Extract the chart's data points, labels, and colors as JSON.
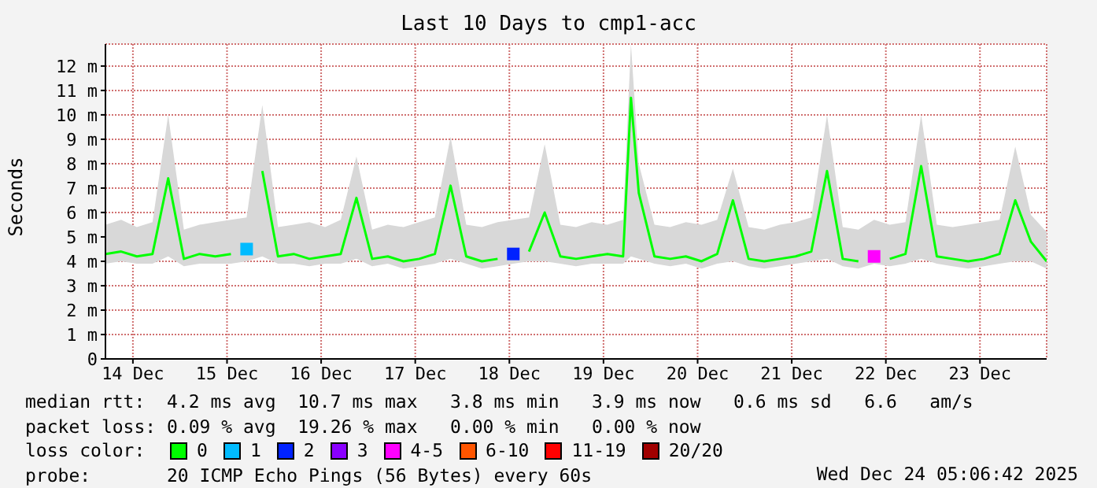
{
  "chart_data": {
    "type": "line",
    "title": "Last 10 Days to cmp1-acc",
    "ylabel": "Seconds",
    "x": [
      "2025-12-14T05:00",
      "2025-12-14T09:00",
      "2025-12-14T13:00",
      "2025-12-14T17:00",
      "2025-12-14T21:00",
      "2025-12-15T01:00",
      "2025-12-15T05:00",
      "2025-12-15T09:00",
      "2025-12-15T13:00",
      "2025-12-15T17:00",
      "2025-12-15T21:00",
      "2025-12-16T01:00",
      "2025-12-16T05:00",
      "2025-12-16T09:00",
      "2025-12-16T13:00",
      "2025-12-16T17:00",
      "2025-12-16T21:00",
      "2025-12-17T01:00",
      "2025-12-17T05:00",
      "2025-12-17T09:00",
      "2025-12-17T13:00",
      "2025-12-17T17:00",
      "2025-12-17T21:00",
      "2025-12-18T01:00",
      "2025-12-18T05:00",
      "2025-12-18T09:00",
      "2025-12-18T13:00",
      "2025-12-18T17:00",
      "2025-12-18T21:00",
      "2025-12-19T01:00",
      "2025-12-19T05:00",
      "2025-12-19T09:00",
      "2025-12-19T13:00",
      "2025-12-19T17:00",
      "2025-12-19T19:00",
      "2025-12-19T21:00",
      "2025-12-20T01:00",
      "2025-12-20T05:00",
      "2025-12-20T09:00",
      "2025-12-20T13:00",
      "2025-12-20T17:00",
      "2025-12-20T21:00",
      "2025-12-21T01:00",
      "2025-12-21T05:00",
      "2025-12-21T09:00",
      "2025-12-21T13:00",
      "2025-12-21T17:00",
      "2025-12-21T21:00",
      "2025-12-22T01:00",
      "2025-12-22T05:00",
      "2025-12-22T09:00",
      "2025-12-22T13:00",
      "2025-12-22T17:00",
      "2025-12-22T21:00",
      "2025-12-23T01:00",
      "2025-12-23T05:00",
      "2025-12-23T09:00",
      "2025-12-23T13:00",
      "2025-12-23T17:00",
      "2025-12-23T21:00",
      "2025-12-24T01:00",
      "2025-12-24T05:00"
    ],
    "series": [
      {
        "name": "0",
        "color": "#00ff00",
        "values": [
          4.3,
          4.4,
          4.2,
          4.3,
          7.4,
          4.1,
          4.3,
          4.2,
          4.3,
          null,
          7.7,
          4.2,
          4.3,
          4.1,
          4.2,
          4.3,
          6.6,
          4.1,
          4.2,
          4.0,
          4.1,
          4.3,
          7.1,
          4.2,
          4.0,
          4.1,
          null,
          4.4,
          6.0,
          4.2,
          4.1,
          4.2,
          4.3,
          4.2,
          10.7,
          6.8,
          4.2,
          4.1,
          4.2,
          4.0,
          4.3,
          6.5,
          4.1,
          4.0,
          4.1,
          4.2,
          4.4,
          7.7,
          4.1,
          4.0,
          null,
          4.1,
          4.3,
          7.9,
          4.2,
          4.1,
          4.0,
          4.1,
          4.3,
          6.5,
          4.8,
          4.0
        ],
        "lower": [
          3.9,
          4.0,
          3.9,
          3.9,
          4.2,
          3.8,
          3.9,
          3.9,
          3.9,
          4.0,
          4.2,
          3.9,
          3.9,
          3.8,
          3.9,
          3.9,
          4.1,
          3.8,
          3.9,
          3.7,
          3.8,
          3.9,
          4.1,
          3.9,
          3.7,
          3.8,
          3.9,
          4.0,
          4.0,
          3.9,
          3.8,
          3.9,
          3.9,
          3.9,
          4.2,
          4.1,
          3.9,
          3.8,
          3.9,
          3.7,
          3.9,
          4.0,
          3.8,
          3.7,
          3.8,
          3.9,
          4.0,
          4.1,
          3.8,
          3.7,
          3.9,
          3.8,
          3.9,
          4.1,
          3.9,
          3.8,
          3.7,
          3.8,
          3.9,
          4.0,
          4.0,
          3.7
        ],
        "upper": [
          5.5,
          5.7,
          5.4,
          5.6,
          10.0,
          5.3,
          5.5,
          5.6,
          5.7,
          5.8,
          10.4,
          5.4,
          5.5,
          5.6,
          5.4,
          5.7,
          8.3,
          5.3,
          5.5,
          5.4,
          5.6,
          5.8,
          9.1,
          5.5,
          5.4,
          5.6,
          5.7,
          5.8,
          8.8,
          5.5,
          5.4,
          5.6,
          5.5,
          5.7,
          12.9,
          8.0,
          5.5,
          5.4,
          5.6,
          5.5,
          5.7,
          7.8,
          5.4,
          5.3,
          5.5,
          5.6,
          5.8,
          10.0,
          5.4,
          5.3,
          5.7,
          5.5,
          5.6,
          10.0,
          5.5,
          5.4,
          5.5,
          5.6,
          5.7,
          8.7,
          5.9,
          5.2
        ]
      },
      {
        "name": "1",
        "color": "#00bbff",
        "type": "scatter",
        "values": [
          null,
          null,
          null,
          null,
          null,
          null,
          null,
          null,
          null,
          4.5,
          null,
          null,
          null,
          null,
          null,
          null,
          null,
          null,
          null,
          null,
          null,
          null,
          null,
          null,
          null,
          null,
          null,
          null,
          null,
          null,
          null,
          null,
          null,
          null,
          null,
          null,
          null,
          null,
          null,
          null,
          null,
          null,
          null,
          null,
          null,
          null,
          null,
          null,
          null,
          null,
          null,
          null,
          null,
          null,
          null,
          null,
          null,
          null,
          null,
          null,
          null,
          null
        ]
      },
      {
        "name": "2",
        "color": "#0022ff",
        "type": "scatter",
        "values": [
          null,
          null,
          null,
          null,
          null,
          null,
          null,
          null,
          null,
          null,
          null,
          null,
          null,
          null,
          null,
          null,
          null,
          null,
          null,
          null,
          null,
          null,
          null,
          null,
          null,
          null,
          4.3,
          null,
          null,
          null,
          null,
          null,
          null,
          null,
          null,
          null,
          null,
          null,
          null,
          null,
          null,
          null,
          null,
          null,
          null,
          null,
          null,
          null,
          null,
          null,
          null,
          null,
          null,
          null,
          null,
          null,
          null,
          null,
          null,
          null,
          null,
          null
        ]
      },
      {
        "name": "3",
        "color": "#8a00ff",
        "type": "scatter",
        "values": [
          null,
          null,
          null,
          null,
          null,
          null,
          null,
          null,
          null,
          null,
          null,
          null,
          null,
          null,
          null,
          null,
          null,
          null,
          null,
          null,
          null,
          null,
          null,
          null,
          null,
          null,
          null,
          null,
          null,
          null,
          null,
          null,
          null,
          null,
          null,
          null,
          null,
          null,
          null,
          null,
          null,
          null,
          null,
          null,
          null,
          null,
          null,
          null,
          null,
          null,
          null,
          null,
          null,
          null,
          null,
          null,
          null,
          null,
          null,
          null,
          null,
          null
        ]
      },
      {
        "name": "4-5",
        "color": "#ff00ff",
        "type": "scatter",
        "values": [
          null,
          null,
          null,
          null,
          null,
          null,
          null,
          null,
          null,
          null,
          null,
          null,
          null,
          null,
          null,
          null,
          null,
          null,
          null,
          null,
          null,
          null,
          null,
          null,
          null,
          null,
          null,
          null,
          null,
          null,
          null,
          null,
          null,
          null,
          null,
          null,
          null,
          null,
          null,
          null,
          null,
          null,
          null,
          null,
          null,
          null,
          null,
          null,
          null,
          null,
          4.2,
          null,
          null,
          null,
          null,
          null,
          null,
          null,
          null,
          null,
          null,
          null
        ]
      },
      {
        "name": "6-10",
        "color": "#ff5500",
        "type": "scatter",
        "values": [
          null,
          null,
          null,
          null,
          null,
          null,
          null,
          null,
          null,
          null,
          null,
          null,
          null,
          null,
          null,
          null,
          null,
          null,
          null,
          null,
          null,
          null,
          null,
          null,
          null,
          null,
          null,
          null,
          null,
          null,
          null,
          null,
          null,
          null,
          null,
          null,
          null,
          null,
          null,
          null,
          null,
          null,
          null,
          null,
          null,
          null,
          null,
          null,
          null,
          null,
          null,
          null,
          null,
          null,
          null,
          null,
          null,
          null,
          null,
          null,
          null,
          null
        ]
      },
      {
        "name": "11-19",
        "color": "#ff0000",
        "type": "scatter",
        "values": [
          null,
          null,
          null,
          null,
          null,
          null,
          null,
          null,
          null,
          null,
          null,
          null,
          null,
          null,
          null,
          null,
          null,
          null,
          null,
          null,
          null,
          null,
          null,
          null,
          null,
          null,
          null,
          null,
          null,
          null,
          null,
          null,
          null,
          null,
          null,
          null,
          null,
          null,
          null,
          null,
          null,
          null,
          null,
          null,
          null,
          null,
          null,
          null,
          null,
          null,
          null,
          null,
          null,
          null,
          null,
          null,
          null,
          null,
          null,
          null,
          null,
          null
        ]
      },
      {
        "name": "20/20",
        "color": "#a10000",
        "type": "scatter",
        "values": [
          null,
          null,
          null,
          null,
          null,
          null,
          null,
          null,
          null,
          null,
          null,
          null,
          null,
          null,
          null,
          null,
          null,
          null,
          null,
          null,
          null,
          null,
          null,
          null,
          null,
          null,
          null,
          null,
          null,
          null,
          null,
          null,
          null,
          null,
          null,
          null,
          null,
          null,
          null,
          null,
          null,
          null,
          null,
          null,
          null,
          null,
          null,
          null,
          null,
          null,
          null,
          null,
          null,
          null,
          null,
          null,
          null,
          null,
          null,
          null,
          null,
          null
        ]
      }
    ],
    "xlim": [
      "2025-12-14T05:00",
      "2025-12-24T05:00"
    ],
    "xticks": [
      {
        "value": "2025-12-14T12:00",
        "label": "14 Dec"
      },
      {
        "value": "2025-12-15T12:00",
        "label": "15 Dec"
      },
      {
        "value": "2025-12-16T12:00",
        "label": "16 Dec"
      },
      {
        "value": "2025-12-17T12:00",
        "label": "17 Dec"
      },
      {
        "value": "2025-12-18T12:00",
        "label": "18 Dec"
      },
      {
        "value": "2025-12-19T12:00",
        "label": "19 Dec"
      },
      {
        "value": "2025-12-20T12:00",
        "label": "20 Dec"
      },
      {
        "value": "2025-12-21T12:00",
        "label": "21 Dec"
      },
      {
        "value": "2025-12-22T12:00",
        "label": "22 Dec"
      },
      {
        "value": "2025-12-23T12:00",
        "label": "23 Dec"
      }
    ],
    "ylim": [
      0,
      12.9
    ],
    "yticks": [
      0,
      {
        "value": 1,
        "label": "1 m"
      },
      {
        "value": 2,
        "label": "2 m"
      },
      {
        "value": 3,
        "label": "3 m"
      },
      {
        "value": 4,
        "label": "4 m"
      },
      {
        "value": 5,
        "label": "5 m"
      },
      {
        "value": 6,
        "label": "6 m"
      },
      {
        "value": 7,
        "label": "7 m"
      },
      {
        "value": 8,
        "label": "8 m"
      },
      {
        "value": 9,
        "label": "9 m"
      },
      {
        "value": 10,
        "label": "10 m"
      },
      {
        "value": 11,
        "label": "11 m"
      },
      {
        "value": 12,
        "label": "12 m"
      }
    ],
    "grid": true,
    "legend": "bottom",
    "legend_title": "loss color:",
    "annotations": [
      "median rtt:  4.2 ms avg  10.7 ms max   3.8 ms min   3.9 ms now   0.6 ms sd   6.6   am/s",
      "packet loss: 0.09 % avg  19.26 % max   0.00 % min   0.00 % now",
      "probe:       20 ICMP Echo Pings (56 Bytes) every 60s",
      "Wed Dec 24 05:06:42 2025"
    ]
  }
}
